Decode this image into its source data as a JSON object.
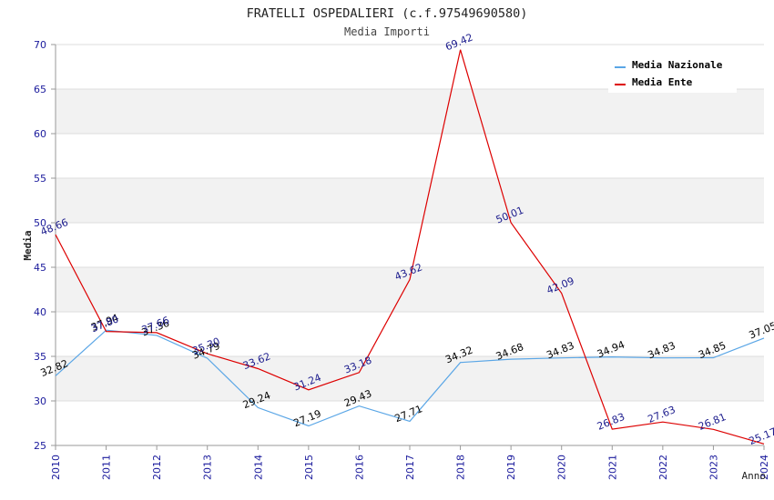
{
  "chart_data": {
    "type": "line",
    "title": "FRATELLI OSPEDALIERI (c.f.97549690580)",
    "subtitle": "Media Importi",
    "xlabel": "Anno",
    "ylabel": "Media",
    "ylim": [
      25,
      70
    ],
    "yticks": [
      "25",
      "30",
      "35",
      "40",
      "45",
      "50",
      "55",
      "60",
      "65",
      "70"
    ],
    "categories": [
      "2010",
      "2011",
      "2012",
      "2013",
      "2014",
      "2015",
      "2016",
      "2017",
      "2018",
      "2019",
      "2020",
      "2021",
      "2022",
      "2023",
      "2024"
    ],
    "legend_position": "top-right",
    "grid": true,
    "series": [
      {
        "name": "Media Nazionale",
        "color": "#5aa6e6",
        "label_color": "#000000",
        "values": [
          32.82,
          37.94,
          37.36,
          34.79,
          29.24,
          27.19,
          29.43,
          27.71,
          34.32,
          34.68,
          34.83,
          34.94,
          34.83,
          34.85,
          37.05
        ],
        "labels": [
          "32.82",
          "37.94",
          "37.36",
          "34.79",
          "29.24",
          "27.19",
          "29.43",
          "27.71",
          "34.32",
          "34.68",
          "34.83",
          "34.94",
          "34.83",
          "34.85",
          "37.05"
        ]
      },
      {
        "name": "Media Ente",
        "color": "#dd0000",
        "label_color": "#1a1a8c",
        "values": [
          48.66,
          37.8,
          37.66,
          35.3,
          33.62,
          31.24,
          33.18,
          43.62,
          69.42,
          50.01,
          42.09,
          26.83,
          27.63,
          26.81,
          25.17
        ],
        "labels": [
          "48.66",
          "37.80",
          "37.66",
          "35.30",
          "33.62",
          "31.24",
          "33.18",
          "43.62",
          "69.42",
          "50.01",
          "42.09",
          "26.83",
          "27.63",
          "26.81",
          "25.17"
        ]
      }
    ]
  }
}
